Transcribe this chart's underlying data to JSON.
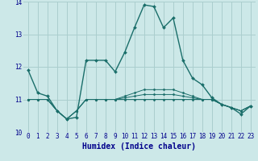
{
  "xlabel": "Humidex (Indice chaleur)",
  "bg_color": "#cce8e8",
  "grid_color": "#aacece",
  "line_color": "#1a6e6a",
  "x": [
    0,
    1,
    2,
    3,
    4,
    5,
    6,
    7,
    8,
    9,
    10,
    11,
    12,
    13,
    14,
    15,
    16,
    17,
    18,
    19,
    20,
    21,
    22,
    23
  ],
  "series": [
    [
      11.9,
      11.2,
      11.1,
      10.65,
      10.4,
      10.45,
      12.2,
      12.2,
      12.2,
      11.85,
      12.45,
      13.2,
      13.9,
      13.85,
      13.2,
      13.5,
      12.2,
      11.65,
      11.45,
      11.05,
      10.85,
      10.75,
      10.55,
      10.8
    ],
    [
      11.0,
      11.0,
      11.0,
      10.65,
      10.4,
      10.65,
      11.0,
      11.0,
      11.0,
      11.0,
      11.0,
      11.0,
      11.0,
      11.0,
      11.0,
      11.0,
      11.0,
      11.0,
      11.0,
      11.0,
      10.85,
      10.75,
      10.65,
      10.8
    ],
    [
      11.0,
      11.0,
      11.0,
      10.65,
      10.4,
      10.65,
      11.0,
      11.0,
      11.0,
      11.0,
      11.05,
      11.1,
      11.15,
      11.15,
      11.15,
      11.15,
      11.1,
      11.05,
      11.0,
      11.0,
      10.85,
      10.75,
      10.65,
      10.8
    ],
    [
      11.0,
      11.0,
      11.0,
      10.65,
      10.4,
      10.65,
      11.0,
      11.0,
      11.0,
      11.0,
      11.1,
      11.2,
      11.3,
      11.3,
      11.3,
      11.3,
      11.2,
      11.1,
      11.0,
      11.0,
      10.85,
      10.75,
      10.65,
      10.8
    ]
  ],
  "ylim": [
    10.0,
    14.0
  ],
  "yticks": [
    10,
    11,
    12,
    13,
    14
  ],
  "xlim": [
    -0.5,
    23.5
  ],
  "xticks": [
    0,
    1,
    2,
    3,
    4,
    5,
    6,
    7,
    8,
    9,
    10,
    11,
    12,
    13,
    14,
    15,
    16,
    17,
    18,
    19,
    20,
    21,
    22,
    23
  ],
  "xlabel_color": "#00008b",
  "tick_color": "#00008b",
  "tick_fontsize": 5.5,
  "xlabel_fontsize": 7.0
}
